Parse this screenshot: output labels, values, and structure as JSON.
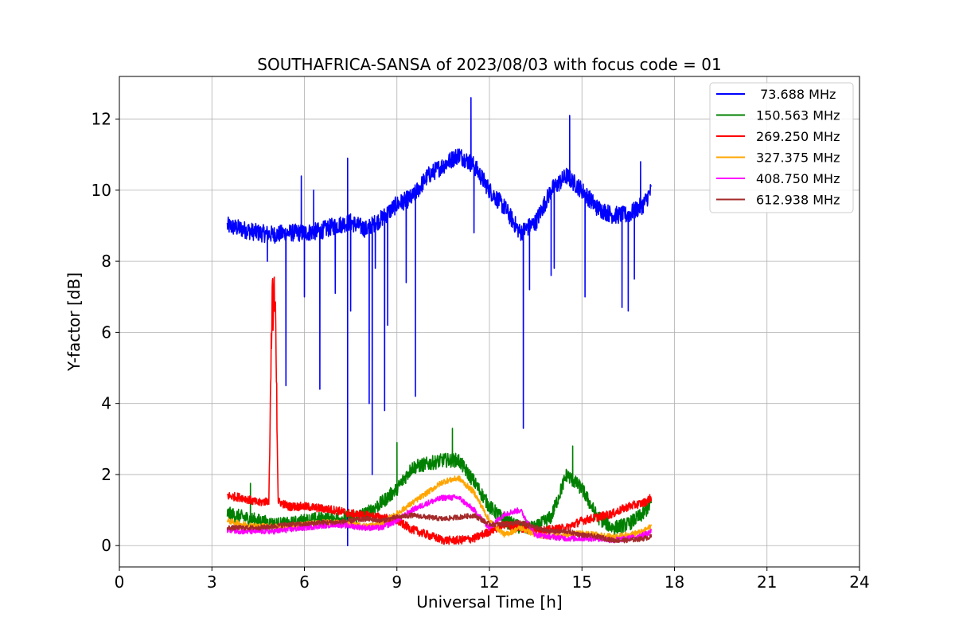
{
  "chart_data": {
    "type": "line",
    "title": "SOUTHAFRICA-SANSA of 2023/08/03 with focus code = 01",
    "xlabel": "Universal Time [h]",
    "ylabel": "Y-factor [dB]",
    "xlim": [
      0,
      24
    ],
    "ylim": [
      -0.6,
      13.2
    ],
    "xticks": [
      0,
      3,
      6,
      9,
      12,
      15,
      18,
      21,
      24
    ],
    "xtick_labels": [
      "0",
      "3",
      "6",
      "9",
      "12",
      "15",
      "18",
      "21",
      "24"
    ],
    "yticks": [
      0,
      2,
      4,
      6,
      8,
      10,
      12
    ],
    "ytick_labels": [
      "0",
      "2",
      "4",
      "6",
      "8",
      "10",
      "12"
    ],
    "grid": true,
    "legend_position": "top-right",
    "x_range_data": [
      3.5,
      17.25
    ],
    "series": [
      {
        "name": " 73.688 MHz",
        "color": "#0000ff",
        "x": [
          3.5,
          4.0,
          4.5,
          5.0,
          5.5,
          6.0,
          6.5,
          7.0,
          7.5,
          8.0,
          8.5,
          9.0,
          9.5,
          10.0,
          10.5,
          11.0,
          11.5,
          12.0,
          12.5,
          13.0,
          13.5,
          14.0,
          14.5,
          15.0,
          15.5,
          16.0,
          16.5,
          17.0,
          17.25
        ],
        "values": [
          9.0,
          8.9,
          8.8,
          8.75,
          8.8,
          8.8,
          8.85,
          9.0,
          9.1,
          8.9,
          9.2,
          9.6,
          9.8,
          10.4,
          10.7,
          11.0,
          10.7,
          10.0,
          9.5,
          8.8,
          9.1,
          10.0,
          10.4,
          10.0,
          9.5,
          9.3,
          9.3,
          9.6,
          10.0
        ],
        "noise": 0.25,
        "spikes": [
          {
            "x": 4.8,
            "y": 8.0
          },
          {
            "x": 5.4,
            "y": 4.5
          },
          {
            "x": 5.9,
            "y": 10.4
          },
          {
            "x": 6.0,
            "y": 7.0
          },
          {
            "x": 6.5,
            "y": 4.4
          },
          {
            "x": 6.3,
            "y": 10.0
          },
          {
            "x": 7.0,
            "y": 7.1
          },
          {
            "x": 7.4,
            "y": 0.0
          },
          {
            "x": 7.5,
            "y": 6.6
          },
          {
            "x": 7.4,
            "y": 10.9
          },
          {
            "x": 8.1,
            "y": 4.0
          },
          {
            "x": 8.2,
            "y": 2.0
          },
          {
            "x": 8.3,
            "y": 7.8
          },
          {
            "x": 8.6,
            "y": 3.8
          },
          {
            "x": 8.7,
            "y": 6.2
          },
          {
            "x": 9.3,
            "y": 7.4
          },
          {
            "x": 9.6,
            "y": 4.2
          },
          {
            "x": 11.4,
            "y": 12.6
          },
          {
            "x": 11.5,
            "y": 8.8
          },
          {
            "x": 13.1,
            "y": 3.3
          },
          {
            "x": 13.3,
            "y": 7.2
          },
          {
            "x": 14.0,
            "y": 7.6
          },
          {
            "x": 14.1,
            "y": 7.8
          },
          {
            "x": 14.6,
            "y": 12.1
          },
          {
            "x": 15.1,
            "y": 7.0
          },
          {
            "x": 16.3,
            "y": 6.7
          },
          {
            "x": 16.5,
            "y": 6.6
          },
          {
            "x": 16.7,
            "y": 7.5
          },
          {
            "x": 16.9,
            "y": 10.8
          }
        ]
      },
      {
        "name": "150.563 MHz",
        "color": "#008000",
        "x": [
          3.5,
          4.0,
          4.5,
          5.0,
          5.5,
          6.0,
          6.5,
          7.0,
          7.5,
          8.0,
          8.5,
          9.0,
          9.5,
          10.0,
          10.5,
          11.0,
          11.5,
          12.0,
          12.5,
          13.0,
          13.5,
          14.0,
          14.5,
          15.0,
          15.5,
          16.0,
          16.5,
          17.0,
          17.25
        ],
        "values": [
          0.9,
          0.8,
          0.7,
          0.6,
          0.6,
          0.7,
          0.75,
          0.75,
          0.8,
          0.9,
          1.2,
          1.6,
          2.2,
          2.3,
          2.4,
          2.4,
          1.8,
          1.1,
          0.7,
          0.5,
          0.5,
          0.8,
          2.0,
          1.6,
          0.8,
          0.5,
          0.6,
          0.9,
          1.2
        ],
        "noise": 0.2,
        "spikes": [
          {
            "x": 4.25,
            "y": 1.75
          },
          {
            "x": 9.0,
            "y": 2.9
          },
          {
            "x": 10.8,
            "y": 3.3
          },
          {
            "x": 14.7,
            "y": 2.8
          }
        ]
      },
      {
        "name": "269.250 MHz",
        "color": "#ff0000",
        "x": [
          3.5,
          4.0,
          4.5,
          5.0,
          5.5,
          6.0,
          6.5,
          7.0,
          7.5,
          8.0,
          8.5,
          9.0,
          9.5,
          10.0,
          10.5,
          11.0,
          11.5,
          12.0,
          12.5,
          13.0,
          13.5,
          14.0,
          14.5,
          15.0,
          15.5,
          16.0,
          16.5,
          17.0,
          17.25
        ],
        "values": [
          1.4,
          1.35,
          1.2,
          1.3,
          1.1,
          1.1,
          1.05,
          1.0,
          0.9,
          0.85,
          0.8,
          0.7,
          0.45,
          0.3,
          0.15,
          0.15,
          0.2,
          0.4,
          0.6,
          0.5,
          0.4,
          0.45,
          0.5,
          0.7,
          0.8,
          0.9,
          1.1,
          1.2,
          1.35
        ],
        "noise": 0.12,
        "burst": {
          "x_start": 4.85,
          "x_end": 5.15,
          "peak": 7.6
        }
      },
      {
        "name": "327.375 MHz",
        "color": "#ffa500",
        "x": [
          3.5,
          4.0,
          4.5,
          5.0,
          5.5,
          6.0,
          6.5,
          7.0,
          7.5,
          8.0,
          8.5,
          9.0,
          9.5,
          10.0,
          10.5,
          11.0,
          11.5,
          12.0,
          12.5,
          13.0,
          13.5,
          14.0,
          14.5,
          15.0,
          15.5,
          16.0,
          16.5,
          17.0,
          17.25
        ],
        "values": [
          0.7,
          0.6,
          0.55,
          0.55,
          0.55,
          0.6,
          0.65,
          0.65,
          0.6,
          0.55,
          0.6,
          0.9,
          1.2,
          1.5,
          1.8,
          1.9,
          1.5,
          0.7,
          0.3,
          0.5,
          0.3,
          0.25,
          0.3,
          0.35,
          0.3,
          0.25,
          0.3,
          0.4,
          0.55
        ],
        "noise": 0.08
      },
      {
        "name": "408.750 MHz",
        "color": "#ff00ff",
        "x": [
          3.5,
          4.0,
          4.5,
          5.0,
          5.5,
          6.0,
          6.5,
          7.0,
          7.5,
          8.0,
          8.5,
          9.0,
          9.5,
          10.0,
          10.5,
          11.0,
          11.5,
          12.0,
          12.5,
          13.0,
          13.5,
          14.0,
          14.5,
          15.0,
          15.5,
          16.0,
          16.5,
          17.0,
          17.25
        ],
        "values": [
          0.45,
          0.4,
          0.4,
          0.4,
          0.45,
          0.5,
          0.55,
          0.6,
          0.55,
          0.5,
          0.5,
          0.7,
          1.0,
          1.2,
          1.35,
          1.35,
          1.0,
          0.5,
          0.9,
          1.0,
          0.3,
          0.25,
          0.2,
          0.2,
          0.2,
          0.15,
          0.2,
          0.3,
          0.4
        ],
        "noise": 0.08
      },
      {
        "name": "612.938 MHz",
        "color": "#a52a2a",
        "x": [
          3.5,
          4.0,
          4.5,
          5.0,
          5.5,
          6.0,
          6.5,
          7.0,
          7.5,
          8.0,
          8.5,
          9.0,
          9.5,
          10.0,
          10.5,
          11.0,
          11.5,
          12.0,
          12.5,
          13.0,
          13.5,
          14.0,
          14.5,
          15.0,
          15.5,
          16.0,
          16.5,
          17.0,
          17.25
        ],
        "values": [
          0.5,
          0.5,
          0.5,
          0.55,
          0.6,
          0.6,
          0.65,
          0.65,
          0.7,
          0.75,
          0.7,
          0.8,
          0.85,
          0.8,
          0.75,
          0.8,
          0.85,
          0.6,
          0.6,
          0.65,
          0.5,
          0.4,
          0.4,
          0.3,
          0.25,
          0.15,
          0.15,
          0.2,
          0.25
        ],
        "noise": 0.07
      }
    ]
  }
}
